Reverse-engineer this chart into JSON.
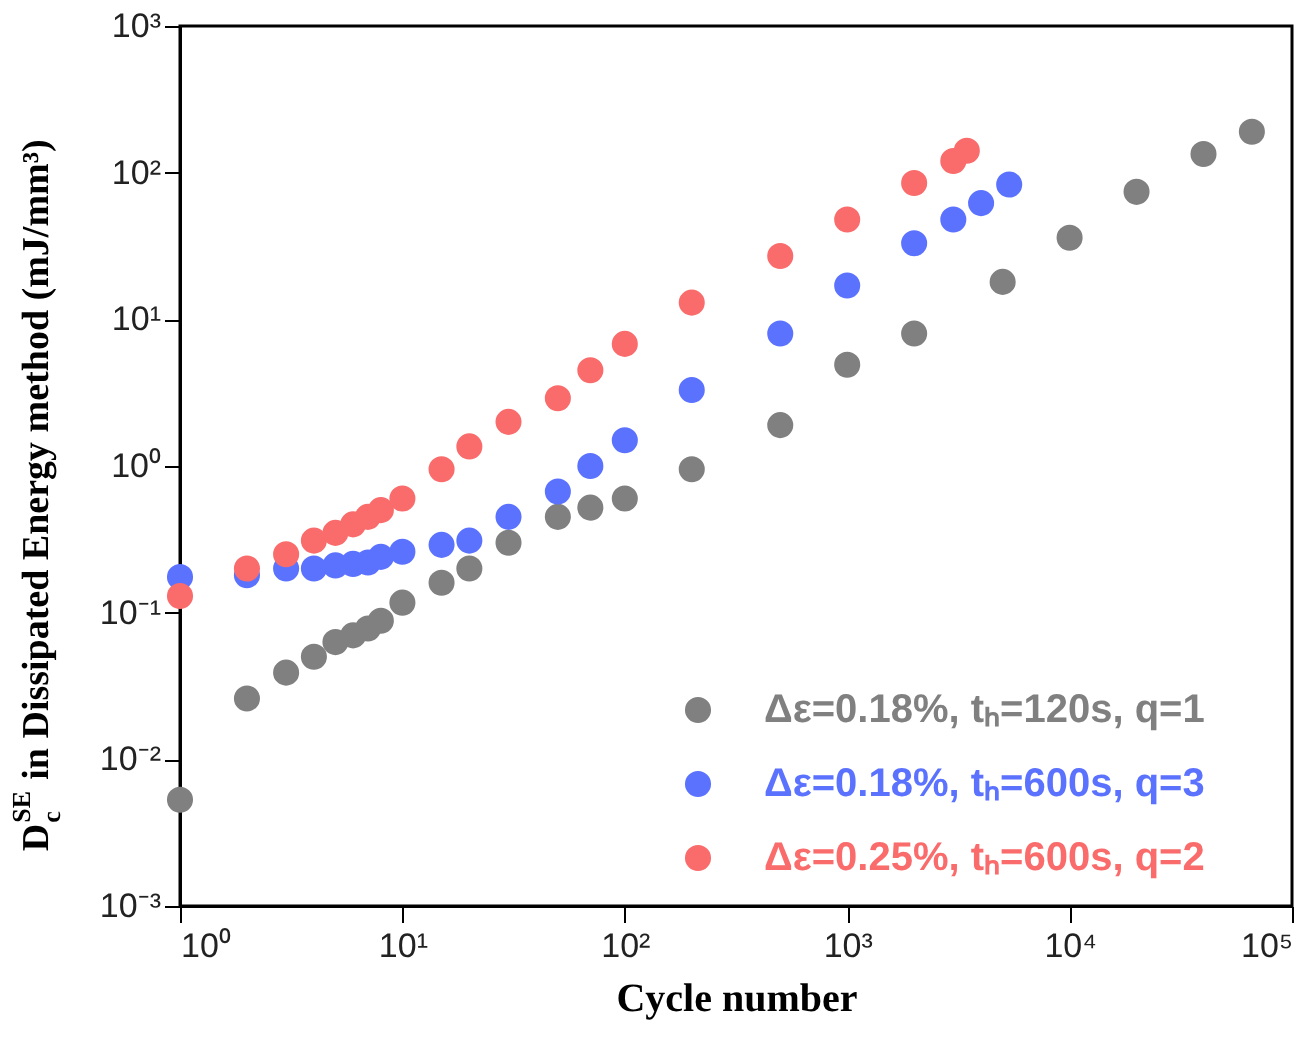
{
  "chart_data": {
    "type": "scatter",
    "xlabel": "Cycle number",
    "ylabel": "D$_{c}$$^{SE}$ in Dissipated Energy method (mJ/mm³)",
    "log": "xy",
    "marker": "circle",
    "legend": "bottom right",
    "grid": false,
    "xlim": [
      1,
      100000
    ],
    "ylim": [
      0.001,
      1000
    ],
    "xticks": [
      {
        "value": 1,
        "label": "10⁰"
      },
      {
        "value": 10,
        "label": "10¹"
      },
      {
        "value": 100,
        "label": "10²"
      },
      {
        "value": 1000,
        "label": "10³"
      },
      {
        "value": 10000,
        "label": "10⁴"
      },
      {
        "value": 100000,
        "label": "10⁵"
      }
    ],
    "yticks": [
      {
        "value": 0.001,
        "label": "10⁻³"
      },
      {
        "value": 0.01,
        "label": "10⁻²"
      },
      {
        "value": 0.1,
        "label": "10⁻¹"
      },
      {
        "value": 1,
        "label": "10⁰"
      },
      {
        "value": 10,
        "label": "10¹"
      },
      {
        "value": 100,
        "label": "10²"
      },
      {
        "value": 1000,
        "label": "10³"
      }
    ],
    "series": [
      {
        "name": "Δε=0.18%, tₕ=120s, q=1",
        "color": "#808080",
        "x": [
          1,
          2,
          3,
          4,
          5,
          6,
          7,
          8,
          10,
          15,
          20,
          30,
          50,
          70,
          100,
          200,
          500,
          1000,
          2000,
          5000,
          10000,
          20000,
          40000,
          66000
        ],
        "values": [
          0.0053,
          0.026,
          0.039,
          0.05,
          0.063,
          0.07,
          0.078,
          0.088,
          0.117,
          0.16,
          0.2,
          0.3,
          0.45,
          0.52,
          0.6,
          0.95,
          1.9,
          4.9,
          8,
          18,
          36,
          74,
          134,
          190
        ]
      },
      {
        "name": "Δε=0.18%, tₕ=600s, q=3",
        "color": "#5b72ff",
        "x": [
          1,
          2,
          3,
          4,
          5,
          6,
          7,
          8,
          10,
          15,
          20,
          30,
          50,
          70,
          100,
          200,
          500,
          1000,
          2000,
          3000,
          4000,
          5350
        ],
        "values": [
          0.175,
          0.18,
          0.2,
          0.2,
          0.21,
          0.215,
          0.22,
          0.24,
          0.26,
          0.29,
          0.31,
          0.45,
          0.67,
          1.0,
          1.5,
          3.3,
          8,
          17,
          33,
          48,
          62,
          83
        ]
      },
      {
        "name": "Δε=0.25%, tₕ=600s, q=2",
        "color": "#fa6b6b",
        "x": [
          1,
          2,
          3,
          4,
          5,
          6,
          7,
          8,
          10,
          15,
          20,
          30,
          50,
          70,
          100,
          200,
          500,
          1000,
          2000,
          3000,
          3450
        ],
        "values": [
          0.13,
          0.2,
          0.25,
          0.31,
          0.35,
          0.4,
          0.45,
          0.5,
          0.6,
          0.95,
          1.36,
          2,
          2.9,
          4.5,
          6.8,
          13,
          27,
          48,
          85,
          120,
          141
        ]
      }
    ]
  }
}
